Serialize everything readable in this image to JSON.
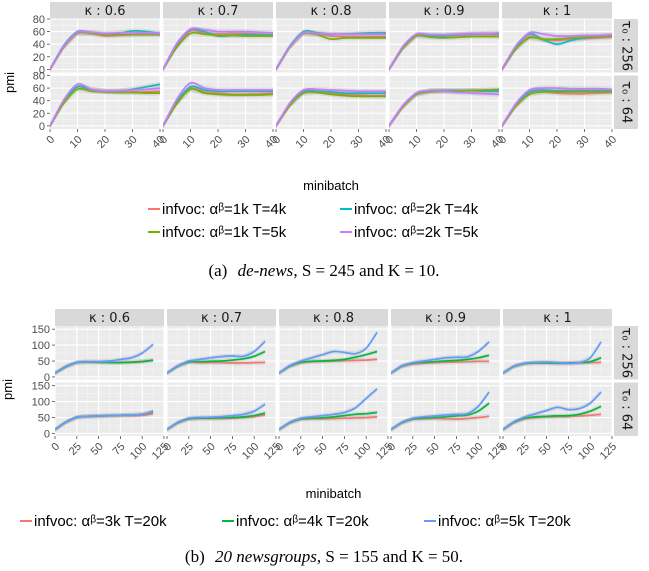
{
  "chart_data": [
    {
      "type": "line",
      "caption": {
        "label": "(a)",
        "dataset": "de-news",
        "rest": ", S = 245 and K = 10."
      },
      "xlabel": "minibatch",
      "ylabel": "pmi",
      "xlim": [
        0,
        40
      ],
      "ylim": [
        -5,
        80
      ],
      "xticks": [
        "0",
        "10",
        "20",
        "30",
        "40"
      ],
      "yticks": [
        "0",
        "20",
        "40",
        "60",
        "80"
      ],
      "col_labels": [
        "κ : 0.6",
        "κ : 0.7",
        "κ : 0.8",
        "κ : 0.9",
        "κ : 1"
      ],
      "row_labels": [
        "τ₀ : 256",
        "τ₀ : 64"
      ],
      "legend_entries": [
        "infvoc: αᵝ=1k T=4k",
        "infvoc: αᵝ=2k T=4k",
        "infvoc: αᵝ=1k T=5k",
        "infvoc: αᵝ=2k T=5k"
      ],
      "series_colors": [
        "#f8766d",
        "#00bfc4",
        "#7cae00",
        "#c77cff"
      ],
      "x": [
        0,
        5,
        10,
        15,
        20,
        25,
        30,
        35,
        40
      ],
      "panels": [
        [
          [
            [
              0,
              35,
              57,
              57,
              53,
              54,
              55,
              56,
              56
            ],
            [
              0,
              38,
              60,
              58,
              56,
              57,
              61,
              60,
              57
            ],
            [
              0,
              36,
              58,
              57,
              55,
              55,
              55,
              55,
              55
            ],
            [
              0,
              37,
              59,
              59,
              57,
              58,
              58,
              58,
              57
            ]
          ],
          [
            [
              0,
              38,
              61,
              58,
              56,
              57,
              57,
              56,
              55
            ],
            [
              0,
              40,
              63,
              60,
              53,
              54,
              55,
              55,
              55
            ],
            [
              0,
              35,
              57,
              56,
              54,
              54,
              53,
              53,
              53
            ],
            [
              0,
              41,
              64,
              63,
              60,
              60,
              60,
              59,
              58
            ]
          ],
          [
            [
              0,
              36,
              58,
              56,
              53,
              52,
              52,
              52,
              52
            ],
            [
              0,
              37,
              60,
              58,
              56,
              56,
              57,
              58,
              58
            ],
            [
              0,
              35,
              57,
              55,
              48,
              50,
              50,
              50,
              50
            ],
            [
              0,
              36,
              58,
              57,
              56,
              56,
              56,
              56,
              56
            ]
          ],
          [
            [
              0,
              35,
              55,
              54,
              53,
              54,
              55,
              55,
              55
            ],
            [
              0,
              34,
              54,
              53,
              53,
              55,
              56,
              57,
              57
            ],
            [
              0,
              33,
              53,
              51,
              50,
              51,
              52,
              52,
              52
            ],
            [
              0,
              36,
              56,
              55,
              55,
              56,
              57,
              57,
              58
            ]
          ],
          [
            [
              0,
              33,
              52,
              47,
              46,
              48,
              49,
              50,
              51
            ],
            [
              0,
              35,
              56,
              47,
              40,
              46,
              50,
              52,
              54
            ],
            [
              0,
              32,
              50,
              48,
              48,
              50,
              51,
              52,
              53
            ],
            [
              0,
              37,
              58,
              56,
              53,
              53,
              54,
              54,
              55
            ]
          ]
        ],
        [
          [
            [
              0,
              38,
              62,
              58,
              55,
              54,
              54,
              54,
              55
            ],
            [
              0,
              38,
              62,
              56,
              55,
              55,
              58,
              62,
              66
            ],
            [
              0,
              36,
              58,
              55,
              54,
              53,
              53,
              52,
              52
            ],
            [
              0,
              41,
              66,
              58,
              55,
              56,
              57,
              58,
              60
            ]
          ],
          [
            [
              0,
              36,
              59,
              54,
              52,
              50,
              50,
              51,
              52
            ],
            [
              0,
              38,
              62,
              57,
              55,
              55,
              55,
              55,
              55
            ],
            [
              0,
              35,
              58,
              52,
              50,
              49,
              49,
              49,
              50
            ],
            [
              0,
              42,
              68,
              60,
              57,
              57,
              57,
              57,
              57
            ]
          ],
          [
            [
              0,
              33,
              53,
              55,
              52,
              50,
              49,
              48,
              48
            ],
            [
              0,
              34,
              55,
              55,
              54,
              52,
              52,
              52,
              52
            ],
            [
              0,
              32,
              52,
              53,
              50,
              48,
              47,
              47,
              47
            ],
            [
              0,
              36,
              57,
              58,
              57,
              56,
              55,
              55,
              55
            ]
          ],
          [
            [
              0,
              30,
              50,
              55,
              56,
              56,
              56,
              56,
              56
            ],
            [
              0,
              31,
              52,
              56,
              56,
              56,
              56,
              55,
              55
            ],
            [
              0,
              30,
              50,
              54,
              55,
              55,
              56,
              57,
              58
            ],
            [
              0,
              32,
              52,
              56,
              55,
              53,
              52,
              51,
              50
            ]
          ],
          [
            [
              0,
              32,
              52,
              54,
              52,
              51,
              51,
              52,
              53
            ],
            [
              0,
              33,
              54,
              57,
              56,
              56,
              56,
              56,
              56
            ],
            [
              0,
              31,
              50,
              54,
              54,
              54,
              54,
              54,
              54
            ],
            [
              0,
              35,
              57,
              60,
              60,
              59,
              59,
              59,
              58
            ]
          ]
        ]
      ]
    },
    {
      "type": "line",
      "caption": {
        "label": "(b)",
        "dataset": "20 newsgroups",
        "rest": ", S = 155 and K = 50."
      },
      "xlabel": "minibatch",
      "ylabel": "pmi",
      "xlim": [
        0,
        125
      ],
      "ylim": [
        -8,
        160
      ],
      "xticks": [
        "0",
        "25",
        "50",
        "75",
        "100",
        "125"
      ],
      "yticks": [
        "0",
        "50",
        "100",
        "150"
      ],
      "col_labels": [
        "κ : 0.6",
        "κ : 0.7",
        "κ : 0.8",
        "κ : 0.9",
        "κ : 1"
      ],
      "row_labels": [
        "τ₀ : 256",
        "τ₀ : 64"
      ],
      "legend_entries": [
        "infvoc: αᵝ=3k T=20k",
        "infvoc: αᵝ=4k T=20k",
        "infvoc: αᵝ=5k T=20k"
      ],
      "series_colors": [
        "#f8766d",
        "#00ba38",
        "#619cff"
      ],
      "x": [
        0,
        12.5,
        25,
        37.5,
        50,
        62.5,
        75,
        87.5,
        100,
        112.5
      ],
      "panels": [
        [
          [
            [
              12,
              32,
              45,
              47,
              46,
              46,
              46,
              47,
              49,
              52
            ],
            [
              12,
              32,
              45,
              47,
              46,
              45,
              45,
              46,
              48,
              53
            ],
            [
              12,
              33,
              46,
              48,
              48,
              50,
              55,
              60,
              75,
              102
            ]
          ],
          [
            [
              12,
              33,
              46,
              45,
              45,
              45,
              44,
              44,
              45,
              46
            ],
            [
              12,
              34,
              47,
              48,
              49,
              50,
              53,
              57,
              65,
              80
            ],
            [
              12,
              35,
              50,
              55,
              60,
              64,
              66,
              65,
              80,
              112
            ]
          ],
          [
            [
              12,
              33,
              44,
              48,
              49,
              50,
              51,
              52,
              53,
              55
            ],
            [
              12,
              34,
              46,
              49,
              50,
              52,
              55,
              62,
              70,
              80
            ],
            [
              12,
              36,
              50,
              60,
              70,
              80,
              77,
              73,
              90,
              140
            ]
          ],
          [
            [
              12,
              33,
              40,
              43,
              45,
              46,
              47,
              48,
              49,
              49
            ],
            [
              12,
              34,
              43,
              46,
              48,
              50,
              52,
              55,
              60,
              68
            ],
            [
              12,
              35,
              45,
              50,
              55,
              60,
              62,
              63,
              80,
              110
            ]
          ],
          [
            [
              12,
              33,
              42,
              44,
              44,
              43,
              43,
              44,
              45,
              46
            ],
            [
              12,
              33,
              42,
              44,
              44,
              43,
              44,
              45,
              48,
              60
            ],
            [
              12,
              34,
              43,
              46,
              47,
              45,
              43,
              45,
              60,
              110
            ]
          ]
        ],
        [
          [
            [
              12,
              35,
              50,
              53,
              54,
              55,
              56,
              56,
              57,
              62
            ],
            [
              12,
              36,
              51,
              54,
              55,
              56,
              57,
              58,
              60,
              68
            ],
            [
              12,
              35,
              50,
              54,
              55,
              56,
              57,
              58,
              60,
              70
            ]
          ],
          [
            [
              12,
              33,
              45,
              47,
              47,
              47,
              48,
              50,
              53,
              58
            ],
            [
              12,
              34,
              46,
              48,
              48,
              49,
              50,
              52,
              56,
              64
            ],
            [
              12,
              35,
              48,
              50,
              51,
              53,
              56,
              60,
              70,
              92
            ]
          ],
          [
            [
              12,
              33,
              44,
              46,
              46,
              47,
              48,
              49,
              50,
              52
            ],
            [
              12,
              34,
              46,
              48,
              49,
              52,
              56,
              60,
              62,
              66
            ],
            [
              12,
              35,
              48,
              52,
              56,
              60,
              66,
              80,
              110,
              140
            ]
          ],
          [
            [
              12,
              33,
              44,
              46,
              47,
              46,
              45,
              47,
              50,
              54
            ],
            [
              12,
              34,
              46,
              48,
              50,
              52,
              55,
              58,
              70,
              95
            ],
            [
              12,
              35,
              48,
              52,
              55,
              58,
              60,
              62,
              85,
              130
            ]
          ],
          [
            [
              12,
              34,
              46,
              50,
              52,
              53,
              53,
              55,
              57,
              60
            ],
            [
              12,
              35,
              48,
              52,
              54,
              55,
              56,
              60,
              70,
              85
            ],
            [
              12,
              37,
              52,
              62,
              72,
              82,
              75,
              78,
              95,
              130
            ]
          ]
        ]
      ]
    }
  ]
}
